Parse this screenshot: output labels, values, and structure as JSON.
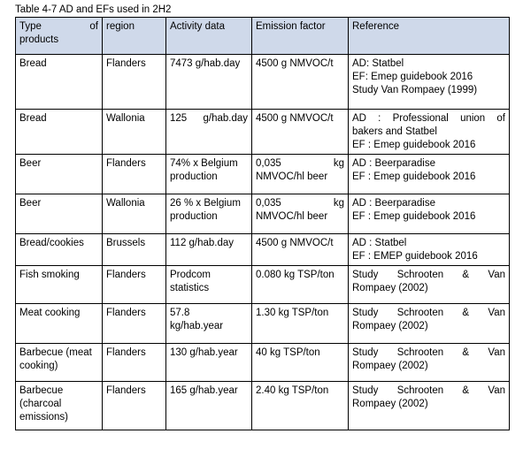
{
  "caption": "Table 4-7 AD and EFs used in 2H2",
  "headers": {
    "type_a": "Type",
    "type_b": "of",
    "type_c": "products",
    "region": "region",
    "activity": "Activity data",
    "emission": "Emission factor",
    "reference": "Reference"
  },
  "rows": [
    {
      "type": [
        "Bread"
      ],
      "region": "Flanders",
      "activity": [
        "7473 g/hab.day"
      ],
      "emission": [
        "4500 g NMVOC/t"
      ],
      "reference": [
        "AD: Statbel",
        "EF: Emep guidebook 2016",
        "Study Van Rompaey (1999)"
      ]
    },
    {
      "type": [
        "Bread"
      ],
      "region": "Wallonia",
      "activity": [
        "125  g/hab.day"
      ],
      "emission": [
        "4500 g NMVOC/t"
      ],
      "reference": [
        "AD :  Professional  union  of",
        "bakers and Statbel",
        "EF : Emep guidebook 2016"
      ]
    },
    {
      "type": [
        "Beer"
      ],
      "region": "Flanders",
      "activity": [
        "74% x Belgium",
        "production"
      ],
      "emission": [
        "0,035          kg",
        "NMVOC/hl beer"
      ],
      "reference": [
        "AD : Beerparadise",
        "EF : Emep guidebook 2016"
      ]
    },
    {
      "type": [
        "Beer"
      ],
      "region": "Wallonia",
      "activity": [
        "26 % x Belgium",
        "production"
      ],
      "emission": [
        "0,035          kg",
        "NMVOC/hl beer"
      ],
      "reference": [
        "AD : Beerparadise",
        "EF : Emep guidebook 2016"
      ]
    },
    {
      "type": [
        "Bread/cookies"
      ],
      "region": "Brussels",
      "activity": [
        "112 g/hab.day"
      ],
      "emission": [
        "4500 g NMVOC/t"
      ],
      "reference": [
        "AD : Statbel",
        "EF : EMEP guidebook 2016"
      ]
    },
    {
      "type": [
        "Fish smoking"
      ],
      "region": "Flanders",
      "activity": [
        "Prodcom",
        "statistics"
      ],
      "emission": [
        "0.080 kg TSP/ton"
      ],
      "reference": [
        "Study   Schrooten   &   Van",
        "Rompaey (2002)"
      ]
    },
    {
      "type": [
        "Meat cooking"
      ],
      "region": "Flanders",
      "activity": [
        "57.8",
        "kg/hab.year"
      ],
      "emission": [
        "1.30 kg TSP/ton"
      ],
      "reference": [
        "Study   Schrooten   &   Van",
        "Rompaey (2002)"
      ]
    },
    {
      "type": [
        "Barbecue (meat",
        "cooking)"
      ],
      "region": "Flanders",
      "activity": [
        "130 g/hab.year"
      ],
      "emission": [
        "40 kg TSP/ton"
      ],
      "reference": [
        "Study   Schrooten   &   Van",
        "Rompaey (2002)"
      ]
    },
    {
      "type": [
        "Barbecue",
        "(charcoal",
        "emissions)"
      ],
      "region": "Flanders",
      "activity": [
        "165 g/hab.year"
      ],
      "emission": [
        "2.40 kg TSP/ton"
      ],
      "reference": [
        "Study   Schrooten   &   Van",
        "Rompaey (2002)"
      ]
    }
  ]
}
